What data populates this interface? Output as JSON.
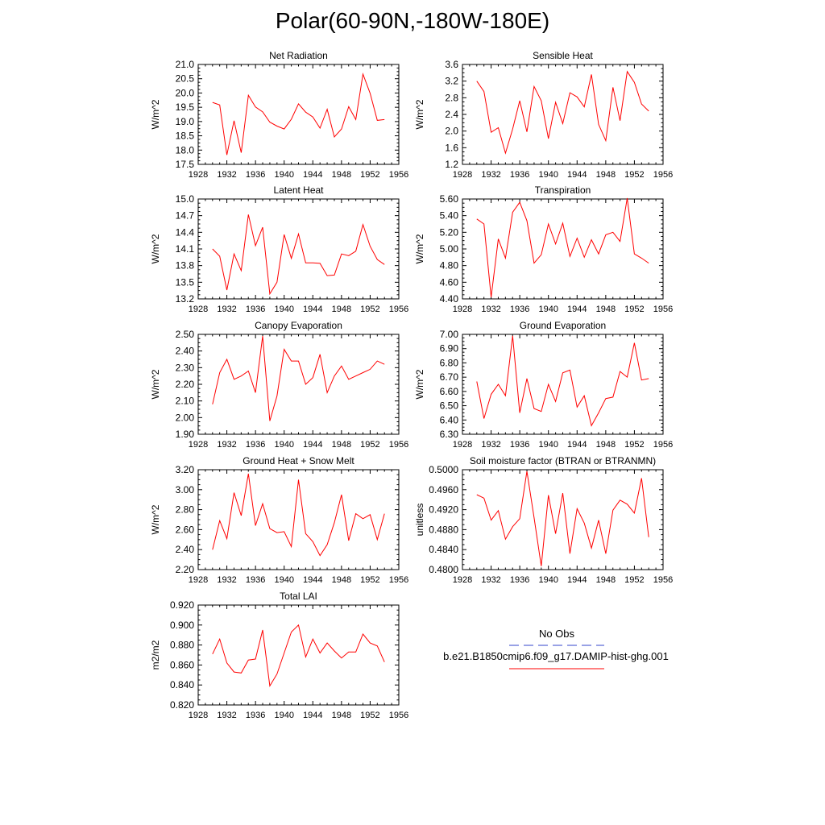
{
  "title": "Polar(60-90N,-180W-180E)",
  "colors": {
    "model": "#ff0000",
    "obs": "#3344cc",
    "axis": "#000000"
  },
  "legend": {
    "obs_label": "No Obs",
    "model_label": "b.e21.B1850cmip6.f09_g17.DAMIP-hist-ghg.001"
  },
  "chart_data": [
    {
      "type": "line",
      "title": "Net Radiation",
      "ylabel": "W/m^2",
      "xlim": [
        1928,
        1956
      ],
      "xticks": [
        "1928",
        "1932",
        "1936",
        "1940",
        "1944",
        "1948",
        "1952",
        "1956"
      ],
      "ylim": [
        17.5,
        21.0
      ],
      "yticks": [
        "17.5",
        "18.0",
        "18.5",
        "19.0",
        "19.5",
        "20.0",
        "20.5",
        "21.0"
      ],
      "x": [
        1930,
        1931,
        1932,
        1933,
        1934,
        1935,
        1936,
        1937,
        1938,
        1939,
        1940,
        1941,
        1942,
        1943,
        1944,
        1945,
        1946,
        1947,
        1948,
        1949,
        1950,
        1951,
        1952,
        1953,
        1954
      ],
      "series": [
        {
          "name": "b.e21.B1850cmip6.f09_g17.DAMIP-hist-ghg.001",
          "values": [
            19.67,
            19.58,
            17.83,
            19.03,
            17.91,
            19.92,
            19.51,
            19.34,
            18.98,
            18.84,
            18.74,
            19.08,
            19.62,
            19.33,
            19.16,
            18.77,
            19.43,
            18.46,
            18.74,
            19.52,
            19.07,
            20.66,
            19.99,
            19.04,
            19.07
          ]
        }
      ]
    },
    {
      "type": "line",
      "title": "Sensible Heat",
      "ylabel": "W/m^2",
      "xlim": [
        1928,
        1956
      ],
      "xticks": [
        "1928",
        "1932",
        "1936",
        "1940",
        "1944",
        "1948",
        "1952",
        "1956"
      ],
      "ylim": [
        1.2,
        3.6
      ],
      "yticks": [
        "1.2",
        "1.6",
        "2.0",
        "2.4",
        "2.8",
        "3.2",
        "3.6"
      ],
      "x": [
        1930,
        1931,
        1932,
        1933,
        1934,
        1935,
        1936,
        1937,
        1938,
        1939,
        1940,
        1941,
        1942,
        1943,
        1944,
        1945,
        1946,
        1947,
        1948,
        1949,
        1950,
        1951,
        1952,
        1953,
        1954
      ],
      "series": [
        {
          "name": "b.e21.B1850cmip6.f09_g17.DAMIP-hist-ghg.001",
          "values": [
            3.2,
            2.95,
            1.97,
            2.08,
            1.47,
            2.05,
            2.73,
            1.98,
            3.07,
            2.73,
            1.82,
            2.69,
            2.18,
            2.92,
            2.82,
            2.58,
            3.36,
            2.16,
            1.77,
            3.05,
            2.25,
            3.43,
            3.17,
            2.65,
            2.48
          ]
        }
      ]
    },
    {
      "type": "line",
      "title": "Latent Heat",
      "ylabel": "W/m^2",
      "xlim": [
        1928,
        1956
      ],
      "xticks": [
        "1928",
        "1932",
        "1936",
        "1940",
        "1944",
        "1948",
        "1952",
        "1956"
      ],
      "ylim": [
        13.2,
        15.0
      ],
      "yticks": [
        "13.2",
        "13.5",
        "13.8",
        "14.1",
        "14.4",
        "14.7",
        "15.0"
      ],
      "x": [
        1930,
        1931,
        1932,
        1933,
        1934,
        1935,
        1936,
        1937,
        1938,
        1939,
        1940,
        1941,
        1942,
        1943,
        1944,
        1945,
        1946,
        1947,
        1948,
        1949,
        1950,
        1951,
        1952,
        1953,
        1954
      ],
      "series": [
        {
          "name": "b.e21.B1850cmip6.f09_g17.DAMIP-hist-ghg.001",
          "values": [
            14.1,
            13.97,
            13.36,
            14.01,
            13.71,
            14.72,
            14.16,
            14.49,
            13.29,
            13.5,
            14.36,
            13.93,
            14.37,
            13.85,
            13.85,
            13.84,
            13.62,
            13.63,
            14.01,
            13.98,
            14.06,
            14.54,
            14.15,
            13.91,
            13.82
          ]
        }
      ]
    },
    {
      "type": "line",
      "title": "Transpiration",
      "ylabel": "W/m^2",
      "xlim": [
        1928,
        1956
      ],
      "xticks": [
        "1928",
        "1932",
        "1936",
        "1940",
        "1944",
        "1948",
        "1952",
        "1956"
      ],
      "ylim": [
        4.4,
        5.6
      ],
      "yticks": [
        "4.40",
        "4.60",
        "4.80",
        "5.00",
        "5.20",
        "5.40",
        "5.60"
      ],
      "x": [
        1930,
        1931,
        1932,
        1933,
        1934,
        1935,
        1936,
        1937,
        1938,
        1939,
        1940,
        1941,
        1942,
        1943,
        1944,
        1945,
        1946,
        1947,
        1948,
        1949,
        1950,
        1951,
        1952,
        1953,
        1954
      ],
      "series": [
        {
          "name": "b.e21.B1850cmip6.f09_g17.DAMIP-hist-ghg.001",
          "values": [
            5.36,
            5.3,
            4.42,
            5.12,
            4.89,
            5.44,
            5.56,
            5.34,
            4.83,
            4.93,
            5.3,
            5.06,
            5.31,
            4.91,
            5.13,
            4.9,
            5.11,
            4.94,
            5.17,
            5.2,
            5.09,
            5.61,
            4.94,
            4.89,
            4.83
          ]
        }
      ]
    },
    {
      "type": "line",
      "title": "Canopy Evaporation",
      "ylabel": "W/m^2",
      "xlim": [
        1928,
        1956
      ],
      "xticks": [
        "1928",
        "1932",
        "1936",
        "1940",
        "1944",
        "1948",
        "1952",
        "1956"
      ],
      "ylim": [
        1.9,
        2.5
      ],
      "yticks": [
        "1.90",
        "2.00",
        "2.10",
        "2.20",
        "2.30",
        "2.40",
        "2.50"
      ],
      "x": [
        1930,
        1931,
        1932,
        1933,
        1934,
        1935,
        1936,
        1937,
        1938,
        1939,
        1940,
        1941,
        1942,
        1943,
        1944,
        1945,
        1946,
        1947,
        1948,
        1949,
        1950,
        1951,
        1952,
        1953,
        1954
      ],
      "series": [
        {
          "name": "b.e21.B1850cmip6.f09_g17.DAMIP-hist-ghg.001",
          "values": [
            2.08,
            2.27,
            2.35,
            2.23,
            2.25,
            2.28,
            2.15,
            2.49,
            1.98,
            2.13,
            2.41,
            2.34,
            2.34,
            2.2,
            2.24,
            2.38,
            2.15,
            2.25,
            2.31,
            2.23,
            2.25,
            2.27,
            2.29,
            2.34,
            2.32
          ]
        }
      ]
    },
    {
      "type": "line",
      "title": "Ground Evaporation",
      "ylabel": "W/m^2",
      "xlim": [
        1928,
        1956
      ],
      "xticks": [
        "1928",
        "1932",
        "1936",
        "1940",
        "1944",
        "1948",
        "1952",
        "1956"
      ],
      "ylim": [
        6.3,
        7.0
      ],
      "yticks": [
        "6.30",
        "6.40",
        "6.50",
        "6.60",
        "6.70",
        "6.80",
        "6.90",
        "7.00"
      ],
      "x": [
        1930,
        1931,
        1932,
        1933,
        1934,
        1935,
        1936,
        1937,
        1938,
        1939,
        1940,
        1941,
        1942,
        1943,
        1944,
        1945,
        1946,
        1947,
        1948,
        1949,
        1950,
        1951,
        1952,
        1953,
        1954
      ],
      "series": [
        {
          "name": "b.e21.B1850cmip6.f09_g17.DAMIP-hist-ghg.001",
          "values": [
            6.67,
            6.41,
            6.58,
            6.65,
            6.57,
            6.99,
            6.45,
            6.69,
            6.48,
            6.46,
            6.65,
            6.53,
            6.73,
            6.75,
            6.49,
            6.57,
            6.36,
            6.45,
            6.55,
            6.56,
            6.74,
            6.7,
            6.94,
            6.68,
            6.69
          ]
        }
      ]
    },
    {
      "type": "line",
      "title": "Ground Heat + Snow Melt",
      "ylabel": "W/m^2",
      "xlim": [
        1928,
        1956
      ],
      "xticks": [
        "1928",
        "1932",
        "1936",
        "1940",
        "1944",
        "1948",
        "1952",
        "1956"
      ],
      "ylim": [
        2.2,
        3.2
      ],
      "yticks": [
        "2.20",
        "2.40",
        "2.60",
        "2.80",
        "3.00",
        "3.20"
      ],
      "x": [
        1930,
        1931,
        1932,
        1933,
        1934,
        1935,
        1936,
        1937,
        1938,
        1939,
        1940,
        1941,
        1942,
        1943,
        1944,
        1945,
        1946,
        1947,
        1948,
        1949,
        1950,
        1951,
        1952,
        1953,
        1954
      ],
      "series": [
        {
          "name": "b.e21.B1850cmip6.f09_g17.DAMIP-hist-ghg.001",
          "values": [
            2.4,
            2.69,
            2.51,
            2.97,
            2.74,
            3.16,
            2.64,
            2.86,
            2.61,
            2.57,
            2.58,
            2.43,
            3.1,
            2.56,
            2.48,
            2.34,
            2.45,
            2.67,
            2.95,
            2.49,
            2.76,
            2.71,
            2.75,
            2.5,
            2.76
          ]
        }
      ]
    },
    {
      "type": "line",
      "title": "Soil moisture factor (BTRAN or BTRANMN)",
      "ylabel": "unitless",
      "xlim": [
        1928,
        1956
      ],
      "xticks": [
        "1928",
        "1932",
        "1936",
        "1940",
        "1944",
        "1948",
        "1952",
        "1956"
      ],
      "ylim": [
        0.48,
        0.5
      ],
      "yticks": [
        "0.4800",
        "0.4840",
        "0.4880",
        "0.4920",
        "0.4960",
        "0.5000"
      ],
      "x": [
        1930,
        1931,
        1932,
        1933,
        1934,
        1935,
        1936,
        1937,
        1938,
        1939,
        1940,
        1941,
        1942,
        1943,
        1944,
        1945,
        1946,
        1947,
        1948,
        1949,
        1950,
        1951,
        1952,
        1953,
        1954
      ],
      "series": [
        {
          "name": "b.e21.B1850cmip6.f09_g17.DAMIP-hist-ghg.001",
          "values": [
            0.495,
            0.4943,
            0.4899,
            0.4918,
            0.4861,
            0.4886,
            0.4902,
            0.4997,
            0.4904,
            0.4807,
            0.4949,
            0.4872,
            0.4953,
            0.4832,
            0.4922,
            0.4893,
            0.4843,
            0.4899,
            0.4832,
            0.4919,
            0.4939,
            0.4931,
            0.4913,
            0.4983,
            0.4865
          ]
        }
      ]
    },
    {
      "type": "line",
      "title": "Total LAI",
      "ylabel": "m2/m2",
      "xlim": [
        1928,
        1956
      ],
      "xticks": [
        "1928",
        "1932",
        "1936",
        "1940",
        "1944",
        "1948",
        "1952",
        "1956"
      ],
      "ylim": [
        0.82,
        0.92
      ],
      "yticks": [
        "0.820",
        "0.840",
        "0.860",
        "0.880",
        "0.900",
        "0.920"
      ],
      "x": [
        1930,
        1931,
        1932,
        1933,
        1934,
        1935,
        1936,
        1937,
        1938,
        1939,
        1940,
        1941,
        1942,
        1943,
        1944,
        1945,
        1946,
        1947,
        1948,
        1949,
        1950,
        1951,
        1952,
        1953,
        1954
      ],
      "series": [
        {
          "name": "b.e21.B1850cmip6.f09_g17.DAMIP-hist-ghg.001",
          "values": [
            0.871,
            0.886,
            0.862,
            0.853,
            0.852,
            0.865,
            0.866,
            0.895,
            0.839,
            0.851,
            0.872,
            0.893,
            0.9,
            0.868,
            0.886,
            0.872,
            0.882,
            0.874,
            0.867,
            0.873,
            0.873,
            0.891,
            0.882,
            0.879,
            0.863
          ]
        }
      ]
    }
  ]
}
